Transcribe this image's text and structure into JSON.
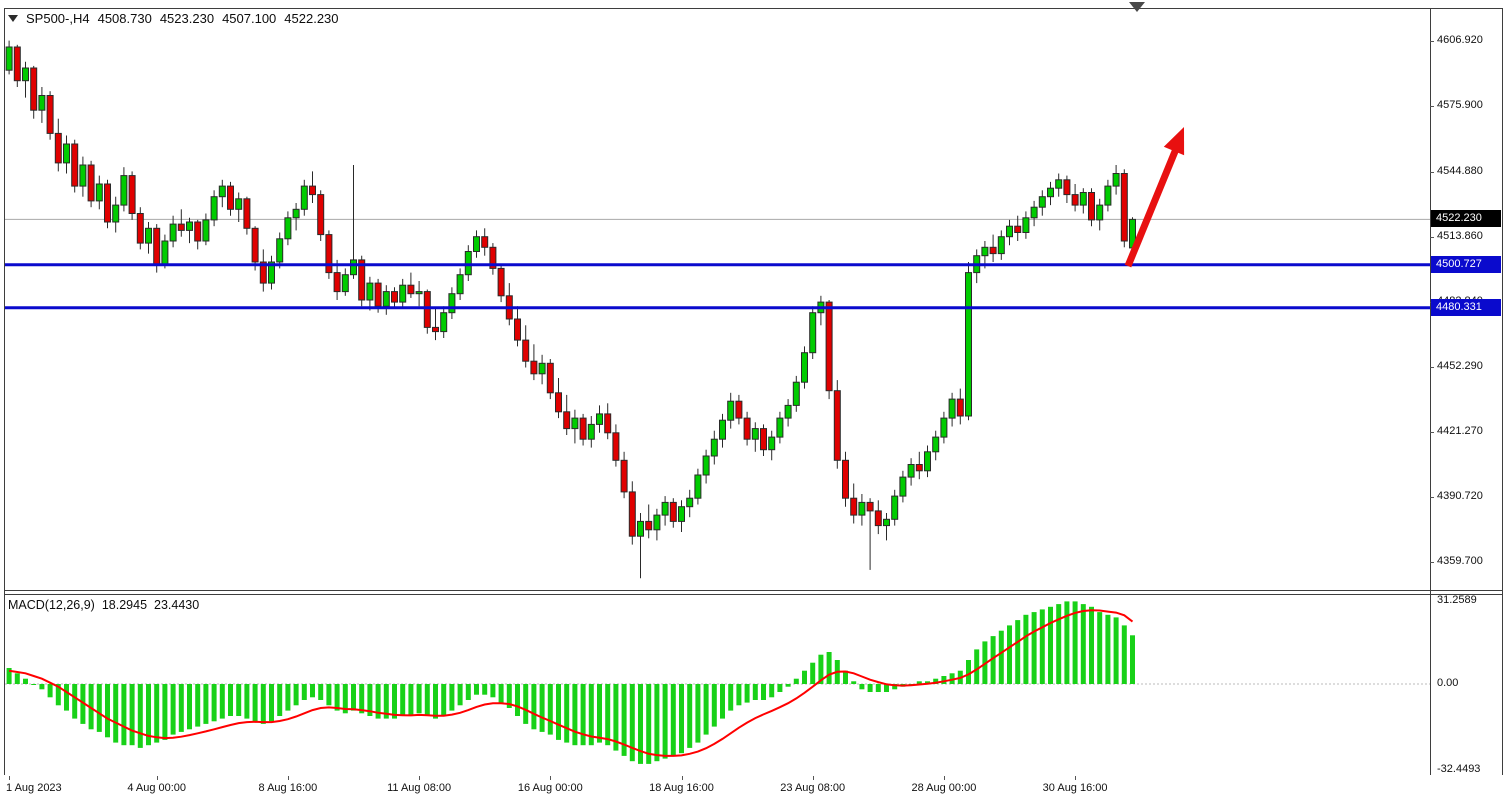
{
  "header": {
    "symbol": "SP500-,H4",
    "open": "4508.730",
    "high": "4523.230",
    "low": "4507.100",
    "close": "4522.230"
  },
  "price_axis": {
    "labels": [
      {
        "text": "4606.920",
        "value": 4606.92
      },
      {
        "text": "4575.900",
        "value": 4575.9
      },
      {
        "text": "4544.880",
        "value": 4544.88
      },
      {
        "text": "4513.860",
        "value": 4513.86
      },
      {
        "text": "4482.840",
        "value": 4482.84
      },
      {
        "text": "4452.290",
        "value": 4452.29
      },
      {
        "text": "4421.270",
        "value": 4421.27
      },
      {
        "text": "4390.720",
        "value": 4390.72
      },
      {
        "text": "4359.700",
        "value": 4359.7
      }
    ],
    "current_price": {
      "text": "4522.230",
      "value": 4522.23,
      "bg": "#000000",
      "fg": "#ffffff"
    }
  },
  "hlines": [
    {
      "text": "4500.727",
      "value": 4500.727,
      "color": "#0a0acd"
    },
    {
      "text": "4480.331",
      "value": 4480.331,
      "color": "#0a0acd"
    }
  ],
  "macd": {
    "label": "MACD(12,26,9)",
    "macd_value": "18.2945",
    "signal_value": "23.4430",
    "axis": [
      {
        "text": "31.2589",
        "value": 31.2589
      },
      {
        "text": "0.00",
        "value": 0
      },
      {
        "text": "-32.4493",
        "value": -32.4493
      }
    ]
  },
  "colors": {
    "bull": "#00cc00",
    "bear": "#e00000",
    "wick": "#2a2a2a",
    "histogram": "#18d118",
    "signal": "#ff0000",
    "level": "#0a0acd",
    "arrow": "#e81010",
    "current_line": "#a8a8a8"
  },
  "chart_data": [
    {
      "type": "candlestick",
      "title": "SP500-,H4",
      "timeframe": "H4",
      "ylabel": "price",
      "xlabel": "time",
      "y_range": [
        4346,
        4622
      ],
      "last_price": 4522.23,
      "levels": [
        4500.727,
        4480.331
      ],
      "x_labels": [
        {
          "index": 0,
          "label": "1 Aug 2023"
        },
        {
          "index": 18,
          "label": "4 Aug 00:00"
        },
        {
          "index": 34,
          "label": "8 Aug 16:00"
        },
        {
          "index": 50,
          "label": "11 Aug 08:00"
        },
        {
          "index": 66,
          "label": "16 Aug 00:00"
        },
        {
          "index": 82,
          "label": "18 Aug 16:00"
        },
        {
          "index": 98,
          "label": "23 Aug 08:00"
        },
        {
          "index": 114,
          "label": "28 Aug 00:00"
        },
        {
          "index": 130,
          "label": "30 Aug 16:00"
        }
      ],
      "candles": [
        [
          4593,
          4607,
          4591,
          4604
        ],
        [
          4604,
          4605,
          4585,
          4588
        ],
        [
          4588,
          4597,
          4580,
          4594
        ],
        [
          4594,
          4595,
          4570,
          4574
        ],
        [
          4574,
          4585,
          4568,
          4581
        ],
        [
          4581,
          4583,
          4560,
          4563
        ],
        [
          4563,
          4570,
          4545,
          4549
        ],
        [
          4549,
          4562,
          4544,
          4558
        ],
        [
          4558,
          4560,
          4535,
          4538
        ],
        [
          4538,
          4552,
          4533,
          4548
        ],
        [
          4548,
          4550,
          4528,
          4531
        ],
        [
          4531,
          4543,
          4527,
          4539
        ],
        [
          4539,
          4541,
          4518,
          4521
        ],
        [
          4521,
          4533,
          4516,
          4529
        ],
        [
          4529,
          4547,
          4526,
          4543
        ],
        [
          4543,
          4545,
          4522,
          4525
        ],
        [
          4525,
          4528,
          4508,
          4511
        ],
        [
          4511,
          4521,
          4506,
          4518
        ],
        [
          4518,
          4520,
          4497,
          4501
        ],
        [
          4501,
          4515,
          4499,
          4512
        ],
        [
          4512,
          4524,
          4509,
          4520
        ],
        [
          4520,
          4527,
          4514,
          4517
        ],
        [
          4517,
          4523,
          4511,
          4521
        ],
        [
          4521,
          4522,
          4508,
          4512
        ],
        [
          4512,
          4525,
          4510,
          4522
        ],
        [
          4522,
          4536,
          4519,
          4533
        ],
        [
          4533,
          4541,
          4528,
          4538
        ],
        [
          4538,
          4540,
          4524,
          4527
        ],
        [
          4527,
          4535,
          4521,
          4532
        ],
        [
          4532,
          4533,
          4515,
          4518
        ],
        [
          4518,
          4519,
          4498,
          4502
        ],
        [
          4502,
          4508,
          4488,
          4492
        ],
        [
          4492,
          4505,
          4489,
          4502
        ],
        [
          4502,
          4516,
          4499,
          4513
        ],
        [
          4513,
          4526,
          4510,
          4523
        ],
        [
          4523,
          4530,
          4517,
          4527
        ],
        [
          4527,
          4541,
          4524,
          4538
        ],
        [
          4538,
          4545,
          4530,
          4534
        ],
        [
          4534,
          4536,
          4512,
          4515
        ],
        [
          4515,
          4517,
          4494,
          4497
        ],
        [
          4497,
          4503,
          4484,
          4488
        ],
        [
          4488,
          4499,
          4486,
          4496
        ],
        [
          4496,
          4548,
          4494,
          4503
        ],
        [
          4503,
          4505,
          4481,
          4484
        ],
        [
          4484,
          4495,
          4479,
          4492
        ],
        [
          4492,
          4494,
          4478,
          4481
        ],
        [
          4481,
          4491,
          4477,
          4488
        ],
        [
          4488,
          4490,
          4480,
          4483
        ],
        [
          4483,
          4494,
          4480,
          4491
        ],
        [
          4491,
          4497,
          4485,
          4487
        ],
        [
          4487,
          4493,
          4481,
          4488
        ],
        [
          4488,
          4489,
          4468,
          4471
        ],
        [
          4471,
          4480,
          4465,
          4469
        ],
        [
          4469,
          4481,
          4466,
          4478
        ],
        [
          4478,
          4490,
          4475,
          4487
        ],
        [
          4487,
          4499,
          4484,
          4496
        ],
        [
          4496,
          4510,
          4493,
          4507
        ],
        [
          4507,
          4517,
          4504,
          4514
        ],
        [
          4514,
          4518,
          4505,
          4509
        ],
        [
          4509,
          4511,
          4496,
          4499
        ],
        [
          4499,
          4501,
          4483,
          4486
        ],
        [
          4486,
          4492,
          4472,
          4475
        ],
        [
          4475,
          4481,
          4462,
          4465
        ],
        [
          4465,
          4472,
          4452,
          4455
        ],
        [
          4455,
          4463,
          4446,
          4449
        ],
        [
          4449,
          4458,
          4444,
          4454
        ],
        [
          4454,
          4456,
          4437,
          4440
        ],
        [
          4440,
          4447,
          4428,
          4431
        ],
        [
          4431,
          4439,
          4420,
          4423
        ],
        [
          4423,
          4432,
          4416,
          4428
        ],
        [
          4428,
          4430,
          4415,
          4418
        ],
        [
          4418,
          4429,
          4414,
          4425
        ],
        [
          4425,
          4434,
          4421,
          4430
        ],
        [
          4430,
          4435,
          4418,
          4421
        ],
        [
          4421,
          4425,
          4405,
          4408
        ],
        [
          4408,
          4412,
          4390,
          4393
        ],
        [
          4393,
          4398,
          4368,
          4372
        ],
        [
          4372,
          4383,
          4352,
          4379
        ],
        [
          4379,
          4387,
          4371,
          4375
        ],
        [
          4375,
          4385,
          4370,
          4382
        ],
        [
          4382,
          4391,
          4377,
          4388
        ],
        [
          4388,
          4390,
          4376,
          4379
        ],
        [
          4379,
          4389,
          4374,
          4386
        ],
        [
          4386,
          4394,
          4381,
          4390
        ],
        [
          4390,
          4404,
          4387,
          4401
        ],
        [
          4401,
          4413,
          4397,
          4410
        ],
        [
          4410,
          4422,
          4406,
          4418
        ],
        [
          4418,
          4430,
          4414,
          4427
        ],
        [
          4427,
          4440,
          4423,
          4436
        ],
        [
          4436,
          4439,
          4425,
          4428
        ],
        [
          4428,
          4431,
          4415,
          4418
        ],
        [
          4418,
          4426,
          4412,
          4423
        ],
        [
          4423,
          4425,
          4410,
          4413
        ],
        [
          4413,
          4422,
          4408,
          4419
        ],
        [
          4419,
          4431,
          4416,
          4428
        ],
        [
          4428,
          4437,
          4424,
          4434
        ],
        [
          4434,
          4448,
          4431,
          4445
        ],
        [
          4445,
          4462,
          4442,
          4459
        ],
        [
          4459,
          4481,
          4456,
          4478
        ],
        [
          4478,
          4486,
          4472,
          4483
        ],
        [
          4483,
          4484,
          4437,
          4441
        ],
        [
          4441,
          4446,
          4404,
          4408
        ],
        [
          4408,
          4412,
          4386,
          4390
        ],
        [
          4390,
          4397,
          4378,
          4382
        ],
        [
          4382,
          4392,
          4377,
          4388
        ],
        [
          4388,
          4390,
          4356,
          4384
        ],
        [
          4384,
          4389,
          4373,
          4377
        ],
        [
          4377,
          4383,
          4370,
          4380
        ],
        [
          4380,
          4394,
          4377,
          4391
        ],
        [
          4391,
          4403,
          4388,
          4400
        ],
        [
          4400,
          4409,
          4396,
          4406
        ],
        [
          4406,
          4412,
          4399,
          4403
        ],
        [
          4403,
          4415,
          4400,
          4412
        ],
        [
          4412,
          4422,
          4408,
          4419
        ],
        [
          4419,
          4431,
          4416,
          4428
        ],
        [
          4428,
          4440,
          4424,
          4437
        ],
        [
          4437,
          4442,
          4425,
          4429
        ],
        [
          4429,
          4502,
          4427,
          4497
        ],
        [
          4497,
          4508,
          4492,
          4505
        ],
        [
          4505,
          4512,
          4499,
          4509
        ],
        [
          4509,
          4515,
          4502,
          4506
        ],
        [
          4506,
          4517,
          4503,
          4514
        ],
        [
          4514,
          4522,
          4510,
          4519
        ],
        [
          4519,
          4524,
          4512,
          4516
        ],
        [
          4516,
          4526,
          4513,
          4523
        ],
        [
          4523,
          4531,
          4519,
          4528
        ],
        [
          4528,
          4536,
          4524,
          4533
        ],
        [
          4533,
          4540,
          4529,
          4537
        ],
        [
          4537,
          4544,
          4533,
          4541
        ],
        [
          4541,
          4543,
          4530,
          4534
        ],
        [
          4534,
          4539,
          4526,
          4529
        ],
        [
          4529,
          4537,
          4525,
          4535
        ],
        [
          4535,
          4537,
          4519,
          4522
        ],
        [
          4522,
          4532,
          4517,
          4529
        ],
        [
          4529,
          4541,
          4526,
          4538
        ],
        [
          4538,
          4548,
          4534,
          4544
        ],
        [
          4544,
          4546,
          4509,
          4512
        ],
        [
          4508.73,
          4523.23,
          4507.1,
          4522.23
        ]
      ]
    },
    {
      "type": "bar",
      "name": "MACD(12,26,9)",
      "legend_position": "top-left",
      "y_range": [
        -33.8,
        33.8
      ],
      "axis_ticks": [
        31.2589,
        0,
        -32.4493
      ],
      "histogram": [
        6,
        4,
        2,
        0,
        -2,
        -5,
        -8,
        -10,
        -13,
        -15,
        -17,
        -18,
        -20,
        -22,
        -23,
        -23,
        -24,
        -23,
        -22,
        -21,
        -19,
        -18,
        -17,
        -16,
        -15,
        -14,
        -13,
        -12,
        -12,
        -13,
        -14,
        -15,
        -14,
        -12,
        -10,
        -8,
        -6,
        -5,
        -6,
        -8,
        -10,
        -11,
        -10,
        -11,
        -12,
        -13,
        -13,
        -13,
        -12,
        -12,
        -11,
        -12,
        -13,
        -12,
        -10,
        -8,
        -6,
        -4,
        -4,
        -5,
        -7,
        -9,
        -12,
        -15,
        -17,
        -18,
        -19,
        -21,
        -22,
        -23,
        -23,
        -23,
        -22,
        -23,
        -25,
        -27,
        -29,
        -30,
        -30,
        -29,
        -28,
        -27,
        -26,
        -24,
        -22,
        -19,
        -16,
        -13,
        -10,
        -8,
        -7,
        -6,
        -6,
        -5,
        -3,
        -1,
        2,
        5,
        8,
        11,
        12,
        9,
        5,
        1,
        -2,
        -3,
        -3,
        -3,
        -2,
        -1,
        0,
        1,
        1,
        2,
        3,
        4,
        5,
        9,
        13,
        16,
        18,
        20,
        22,
        24,
        26,
        27,
        28,
        29,
        30,
        31,
        31,
        30,
        29,
        27,
        26,
        25,
        22,
        18.2945
      ],
      "signal": [
        5,
        4.5,
        4,
        3,
        2,
        0.5,
        -1,
        -3,
        -5,
        -7,
        -9,
        -11,
        -13,
        -14.5,
        -16,
        -17.5,
        -18.5,
        -19.5,
        -20,
        -20.3,
        -20.2,
        -19.8,
        -19.2,
        -18.5,
        -17.8,
        -17,
        -16.2,
        -15.4,
        -14.7,
        -14.3,
        -14.2,
        -14.3,
        -14.3,
        -13.9,
        -13.2,
        -12.2,
        -11,
        -9.8,
        -9,
        -8.8,
        -9,
        -9.4,
        -9.5,
        -9.8,
        -10.2,
        -10.8,
        -11.2,
        -11.6,
        -11.7,
        -11.8,
        -11.6,
        -11.7,
        -11.9,
        -11.9,
        -11.5,
        -10.8,
        -9.8,
        -8.6,
        -7.7,
        -7.2,
        -7.2,
        -7.5,
        -8.4,
        -9.7,
        -11.2,
        -12.6,
        -13.9,
        -15.3,
        -16.6,
        -17.9,
        -18.9,
        -19.7,
        -20.2,
        -20.7,
        -21.6,
        -22.7,
        -24,
        -25.2,
        -26.2,
        -26.7,
        -27,
        -27,
        -26.8,
        -26.2,
        -25.4,
        -24.1,
        -22.5,
        -20.6,
        -18.5,
        -16.4,
        -14.5,
        -12.8,
        -11.4,
        -10.1,
        -8.7,
        -7.2,
        -5.4,
        -3.3,
        -1,
        1.4,
        3.5,
        4.6,
        4.7,
        4,
        2.8,
        1.6,
        0.7,
        -0.1,
        -0.5,
        -0.6,
        -0.5,
        -0.2,
        0.1,
        0.5,
        1,
        1.6,
        2.3,
        3.6,
        5.5,
        7.6,
        9.7,
        11.7,
        13.8,
        15.8,
        17.9,
        19.7,
        21.3,
        22.9,
        24.3,
        25.6,
        26.7,
        27.4,
        27.7,
        27.6,
        27.2,
        26.8,
        25.8,
        23.443
      ]
    }
  ]
}
